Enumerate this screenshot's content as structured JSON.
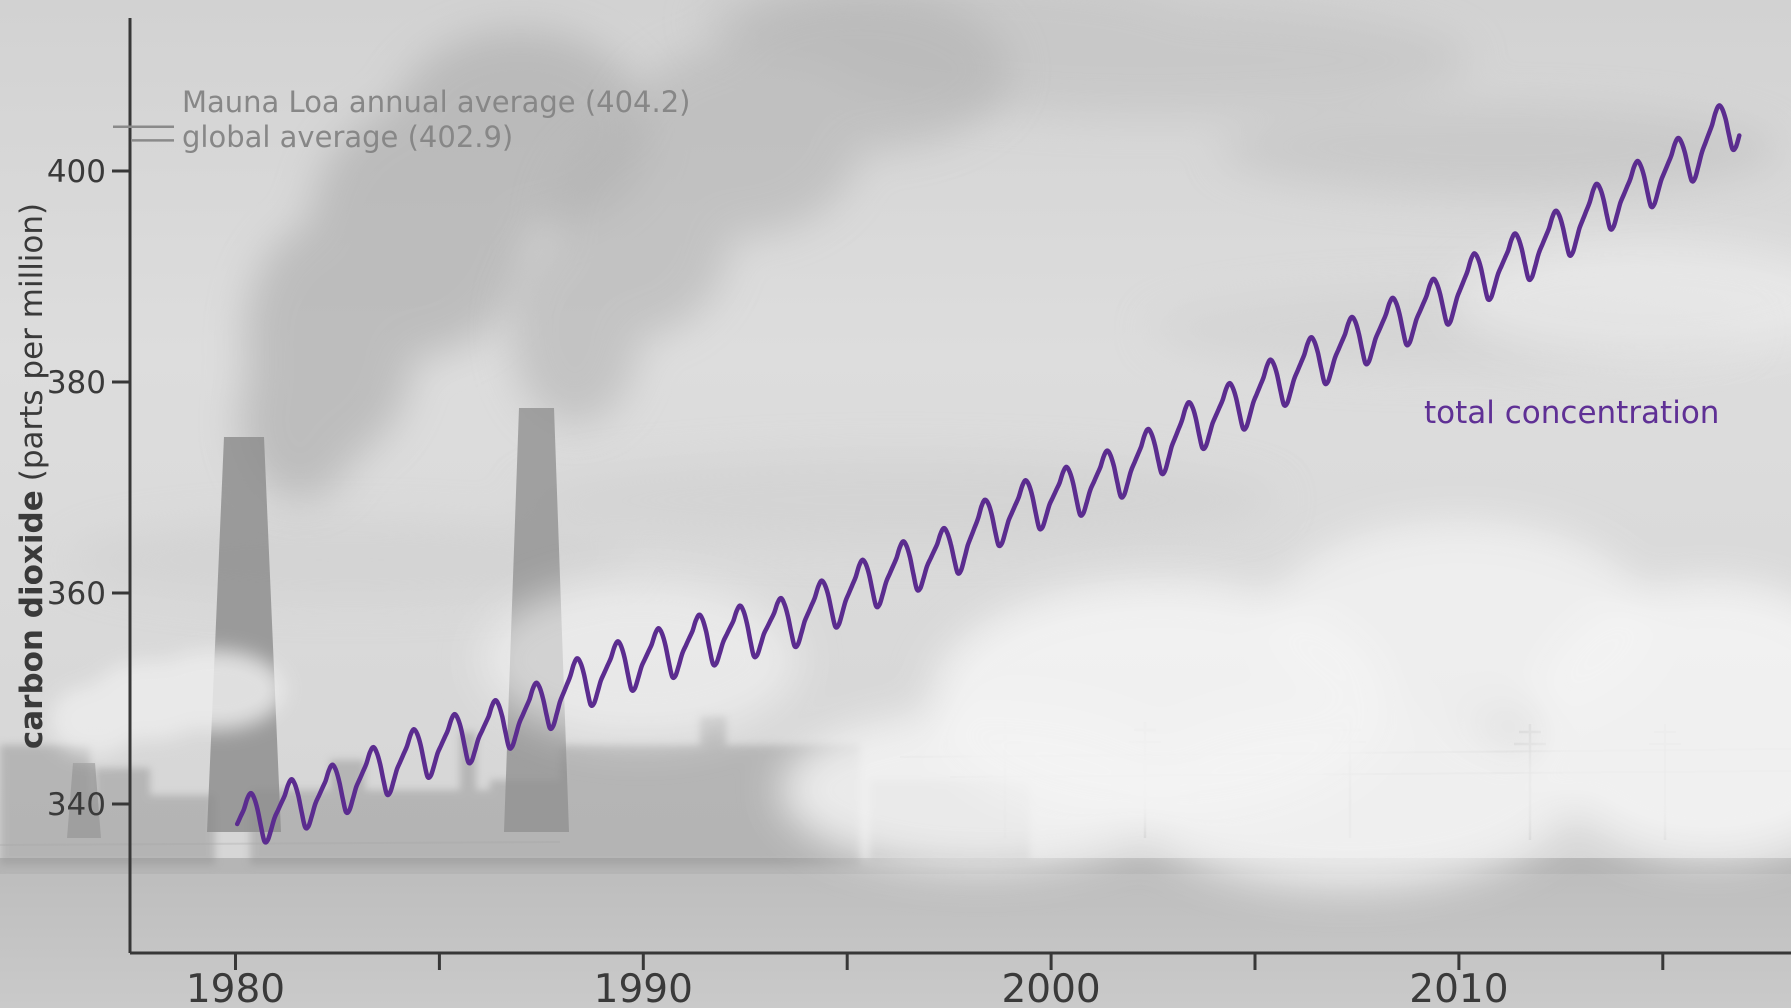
{
  "colors": {
    "line": "#5b2c8f",
    "series_label_text": "#5f3095",
    "annotation_text": "#878787",
    "axis": "#373737",
    "sky_base": "#d9d9d9"
  },
  "y_axis": {
    "title_bold": "carbon dioxide",
    "title_regular": "(parts per million)",
    "labels": [
      "400",
      "380",
      "360",
      "340"
    ]
  },
  "x_axis": {
    "labels": [
      "1980",
      "1990",
      "2000",
      "2010"
    ]
  },
  "annotations": {
    "mauna_loa_label": "Mauna Loa annual average (404.2)",
    "global_label": "global average (402.9)",
    "series_label": "total concentration"
  },
  "chart_data": {
    "type": "line",
    "title": "",
    "xlabel": "",
    "ylabel": "carbon dioxide (parts per million)",
    "grid": false,
    "legend_position": "inline-right",
    "x_axis_tick_years": [
      1980,
      1985,
      1990,
      1995,
      2000,
      2005,
      2010,
      2015
    ],
    "x_axis_labeled_years": [
      1980,
      1990,
      2000,
      2010
    ],
    "y_axis_tick_ppm": [
      400,
      380,
      360,
      340
    ],
    "xlim_years": [
      1977.4,
      2018.1
    ],
    "ylim_ppm": [
      325.9,
      414.5
    ],
    "reference_levels": [
      {
        "name": "Mauna Loa annual average",
        "value_ppm": 404.2
      },
      {
        "name": "global average",
        "value_ppm": 402.9
      }
    ],
    "series": [
      {
        "name": "total concentration",
        "color": "#5b2c8f",
        "start_year": 1980,
        "end_month": "2016-11",
        "annual_means_ppm": [
          338.8,
          340.1,
          341.5,
          343.2,
          344.9,
          346.3,
          347.6,
          349.3,
          351.7,
          353.2,
          354.4,
          355.7,
          356.5,
          357.2,
          359.0,
          361.0,
          362.7,
          363.9,
          366.8,
          368.5,
          369.7,
          371.3,
          373.4,
          376.0,
          377.7,
          380.0,
          382.1,
          384.0,
          385.8,
          387.6,
          390.1,
          391.9,
          394.1,
          396.7,
          398.8,
          401.0,
          404.2
        ],
        "next_year_mean_ppm": 406.5,
        "seasonal_offsets_ppm": [
          -0.1,
          0.5,
          1.1,
          2.0,
          2.4,
          1.8,
          0.6,
          -1.1,
          -2.6,
          -2.6,
          -1.7,
          -0.7
        ]
      }
    ]
  }
}
